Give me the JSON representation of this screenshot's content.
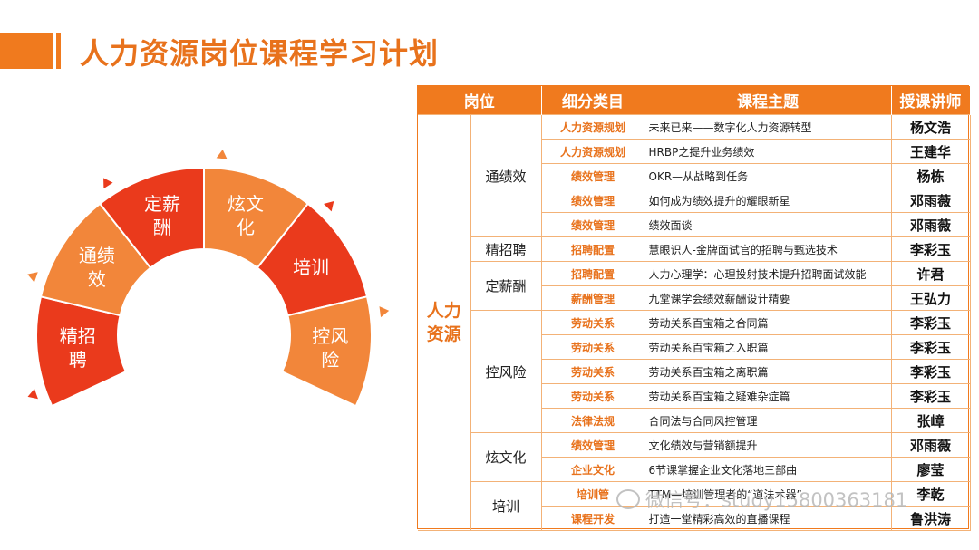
{
  "title": "人力资源岗位课程学习计划",
  "colors": {
    "accent": "#f07a1e",
    "red": "#ea3a1c",
    "orange": "#f2863a"
  },
  "wheel": {
    "segments": [
      {
        "label_line1": "精招",
        "label_line2": "聘",
        "color": "#ea3a1c"
      },
      {
        "label_line1": "通绩",
        "label_line2": "效",
        "color": "#f2863a"
      },
      {
        "label_line1": "定薪",
        "label_line2": "酬",
        "color": "#ea3a1c"
      },
      {
        "label_line1": "炫文",
        "label_line2": "化",
        "color": "#f2863a"
      },
      {
        "label_line1": "培训",
        "label_line2": "",
        "color": "#ea3a1c"
      },
      {
        "label_line1": "控风",
        "label_line2": "险",
        "color": "#f2863a"
      }
    ]
  },
  "table": {
    "headers": {
      "position": "岗位",
      "category": "细分类目",
      "topic": "课程主题",
      "teacher": "授课讲师"
    },
    "department": "人力资源",
    "groups": [
      {
        "position": "通绩效",
        "rows": [
          {
            "category": "人力资源规划",
            "topic": "未来已来——数字化人力资源转型",
            "teacher": "杨文浩"
          },
          {
            "category": "人力资源规划",
            "topic": "HRBP之提升业务绩效",
            "teacher": "王建华"
          },
          {
            "category": "绩效管理",
            "topic": "OKR—从战略到任务",
            "teacher": "杨栋"
          },
          {
            "category": "绩效管理",
            "topic": "如何成为绩效提升的耀眼新星",
            "teacher": "邓雨薇"
          },
          {
            "category": "绩效管理",
            "topic": "绩效面谈",
            "teacher": "邓雨薇"
          }
        ]
      },
      {
        "position": "精招聘",
        "rows": [
          {
            "category": "招聘配置",
            "topic": "慧眼识人-金牌面试官的招聘与甄选技术",
            "teacher": "李彩玉"
          }
        ]
      },
      {
        "position": "定薪酬",
        "rows": [
          {
            "category": "招聘配置",
            "topic": "人力心理学：心理投射技术提升招聘面试效能",
            "teacher": "许君"
          },
          {
            "category": "薪酬管理",
            "topic": "九堂课学会绩效薪酬设计精要",
            "teacher": "王弘力"
          }
        ]
      },
      {
        "position": "控风险",
        "rows": [
          {
            "category": "劳动关系",
            "topic": "劳动关系百宝箱之合同篇",
            "teacher": "李彩玉"
          },
          {
            "category": "劳动关系",
            "topic": "劳动关系百宝箱之入职篇",
            "teacher": "李彩玉"
          },
          {
            "category": "劳动关系",
            "topic": "劳动关系百宝箱之离职篇",
            "teacher": "李彩玉"
          },
          {
            "category": "劳动关系",
            "topic": "劳动关系百宝箱之疑难杂症篇",
            "teacher": "李彩玉"
          },
          {
            "category": "法律法规",
            "topic": "合同法与合同风控管理",
            "teacher": "张嶂"
          }
        ]
      },
      {
        "position": "炫文化",
        "rows": [
          {
            "category": "绩效管理",
            "topic": "文化绩效与营销额提升",
            "teacher": "邓雨薇"
          },
          {
            "category": "企业文化",
            "topic": "6节课掌握企业文化落地三部曲",
            "teacher": "廖莹"
          }
        ]
      },
      {
        "position": "培训",
        "rows": [
          {
            "category": "培训管",
            "topic": "TTM—培训管理者的“道法术器”",
            "teacher": "李乾"
          },
          {
            "category": "课程开发",
            "topic": "打造一堂精彩高效的直播课程",
            "teacher": "鲁洪涛"
          }
        ]
      }
    ]
  },
  "watermark": "微信号：study15800363181"
}
